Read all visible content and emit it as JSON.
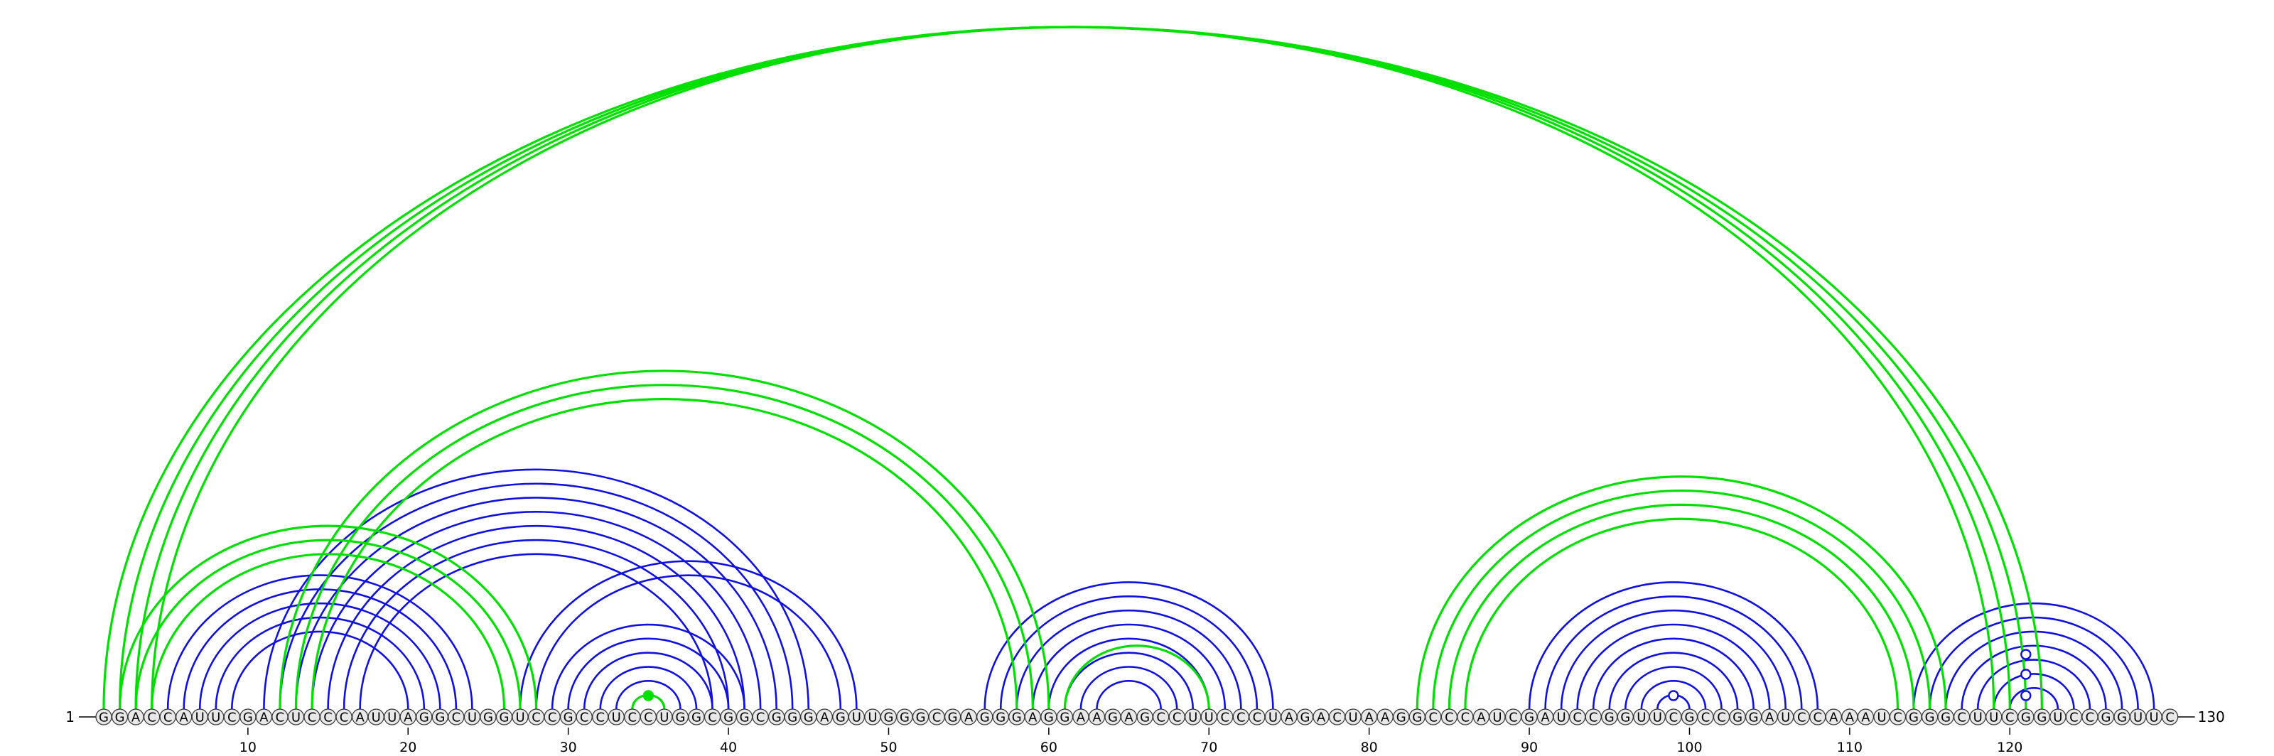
{
  "diagram": {
    "sequence": "GGACCAUUCGACUCCCAUUAGGCUGGUCCGCCUCCUGGCGGCGGGAGUUGGGCGAGGGAGGAAGAGCCUUCCCUAGACUAAGGCCCAUCGAUCCGGUUCGCCGGAUCCAAAUCGGGCUUCGGUCCGGUUC",
    "start_label": "1",
    "end_label": "130",
    "tick_labels": [
      "10",
      "20",
      "30",
      "40",
      "50",
      "60",
      "70",
      "80",
      "90",
      "100",
      "110",
      "120"
    ],
    "colors": {
      "blue": "#1010e0",
      "green": "#00e000"
    },
    "blue_pairs": [
      [
        5,
        24
      ],
      [
        6,
        23
      ],
      [
        7,
        22
      ],
      [
        8,
        21
      ],
      [
        9,
        20
      ],
      [
        11,
        45
      ],
      [
        12,
        44
      ],
      [
        13,
        43
      ],
      [
        14,
        42
      ],
      [
        15,
        41
      ],
      [
        16,
        40
      ],
      [
        17,
        39
      ],
      [
        27,
        48
      ],
      [
        28,
        47
      ],
      [
        29,
        41
      ],
      [
        30,
        40
      ],
      [
        31,
        39
      ],
      [
        32,
        38
      ],
      [
        33,
        37
      ],
      [
        56,
        74
      ],
      [
        57,
        73
      ],
      [
        58,
        72
      ],
      [
        59,
        71
      ],
      [
        60,
        70
      ],
      [
        61,
        69
      ],
      [
        62,
        68
      ],
      [
        63,
        67
      ],
      [
        90,
        108
      ],
      [
        91,
        107
      ],
      [
        92,
        106
      ],
      [
        93,
        105
      ],
      [
        94,
        104
      ],
      [
        95,
        103
      ],
      [
        96,
        102
      ],
      [
        97,
        101
      ],
      [
        98,
        100
      ],
      [
        114,
        129
      ],
      [
        115,
        128
      ],
      [
        116,
        127
      ],
      [
        117,
        126
      ],
      [
        118,
        125
      ],
      [
        119,
        124
      ],
      [
        120,
        123
      ]
    ],
    "green_pairs": [
      [
        1,
        122
      ],
      [
        2,
        121
      ],
      [
        3,
        120
      ],
      [
        4,
        119
      ],
      [
        2,
        28
      ],
      [
        3,
        27
      ],
      [
        4,
        26
      ],
      [
        12,
        60
      ],
      [
        13,
        59
      ],
      [
        14,
        58
      ],
      [
        61,
        70
      ],
      [
        83,
        116
      ],
      [
        84,
        115
      ],
      [
        85,
        114
      ],
      [
        86,
        113
      ],
      [
        34,
        36
      ]
    ],
    "markers": [
      {
        "pos": 35,
        "type": "filled",
        "color": "green",
        "level": 1
      },
      {
        "pos": 99,
        "type": "open",
        "color": "blue",
        "level": 1
      },
      {
        "pos": 121,
        "type": "open",
        "color": "blue",
        "level": 1
      },
      {
        "pos": 121,
        "type": "open",
        "color": "blue",
        "level": 2
      },
      {
        "pos": 121,
        "type": "open",
        "color": "blue",
        "level": 3
      }
    ]
  }
}
